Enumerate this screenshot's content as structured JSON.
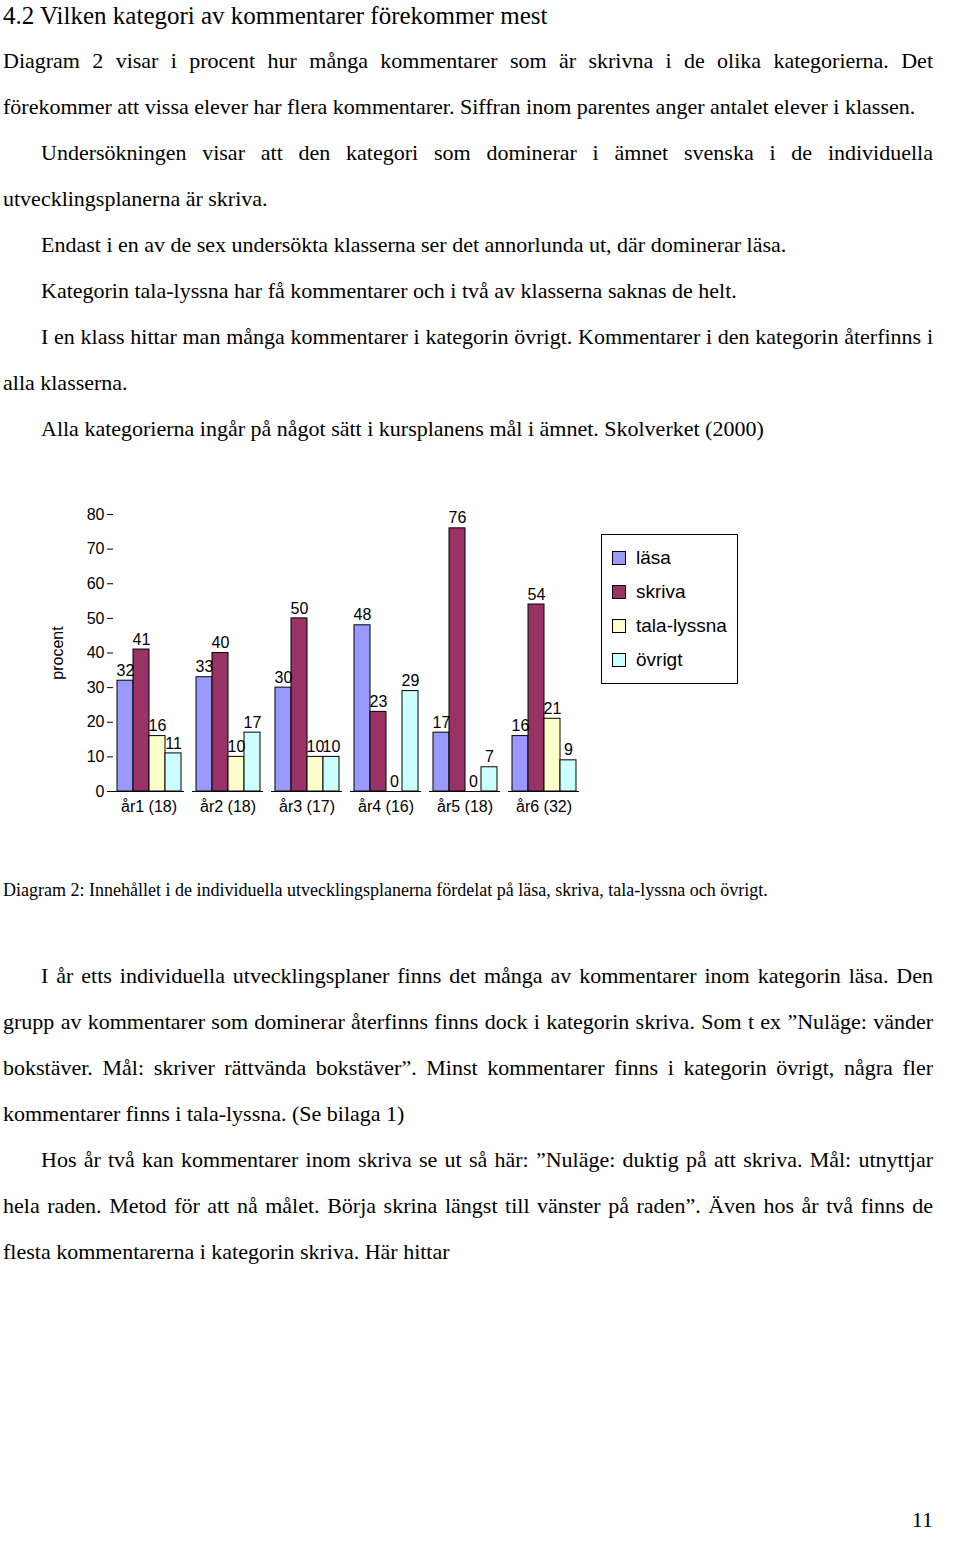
{
  "heading": "4.2 Vilken kategori av kommentarer förekommer mest",
  "intro_paragraphs": [
    "Diagram 2 visar i procent hur många kommentarer som är skrivna i de olika kategorierna. Det förekommer att vissa elever har flera kommentarer. Siffran inom parentes anger antalet elever i klassen.",
    "Undersökningen visar att den kategori som dominerar i ämnet svenska i de individuella utvecklingsplanerna är skriva.",
    "Endast i en av de sex undersökta klasserna ser det annorlunda ut, där dominerar läsa.",
    "Kategorin tala-lyssna har få kommentarer och i två av klasserna saknas de helt.",
    "I en klass hittar man många kommentarer i kategorin övrigt. Kommentarer i den kategorin återfinns i alla klasserna.",
    "Alla kategorierna ingår på något sätt i kursplanens mål i ämnet. Skolverket (2000)"
  ],
  "chart_data": {
    "type": "bar",
    "y_label": "procent",
    "categories": [
      "år1 (18)",
      "år2 (18)",
      "år3 (17)",
      "år4 (16)",
      "år5 (18)",
      "år6 (32)"
    ],
    "series": [
      {
        "name": "läsa",
        "color": "#9999ff",
        "values": [
          32,
          33,
          30,
          48,
          17,
          16
        ]
      },
      {
        "name": "skriva",
        "color": "#993366",
        "values": [
          41,
          40,
          50,
          23,
          76,
          54
        ]
      },
      {
        "name": "tala-lyssna",
        "color": "#ffffcc",
        "values": [
          16,
          10,
          10,
          0,
          0,
          21
        ]
      },
      {
        "name": "övrigt",
        "color": "#ccffff",
        "values": [
          11,
          17,
          10,
          29,
          7,
          9
        ]
      }
    ],
    "ylim": [
      0,
      80
    ],
    "yticks": [
      0,
      10,
      20,
      30,
      40,
      50,
      60,
      70,
      80
    ],
    "grid": false,
    "legend": "right",
    "data_labels": true
  },
  "caption": "Diagram 2: Innehållet i de individuella utvecklingsplanerna fördelat på läsa, skriva, tala-lyssna och övrigt.",
  "body_paragraphs": [
    "I år etts individuella utvecklingsplaner finns det många av kommentarer inom kategorin läsa. Den grupp av kommentarer som dominerar återfinns finns dock i kategorin skriva. Som t ex ”Nuläge: vänder bokstäver. Mål: skriver rättvända bokstäver”. Minst kommentarer finns i kategorin övrigt, några fler kommentarer finns i tala-lyssna. (Se bilaga 1)",
    "Hos år två kan kommentarer inom skriva se ut så här: ”Nuläge: duktig på att skriva. Mål: utnyttjar hela raden. Metod för att nå målet. Börja skrina längst till vänster på raden”. Även hos år två finns de flesta kommentarerna i kategorin skriva. Här hittar"
  ],
  "page_number": "11"
}
